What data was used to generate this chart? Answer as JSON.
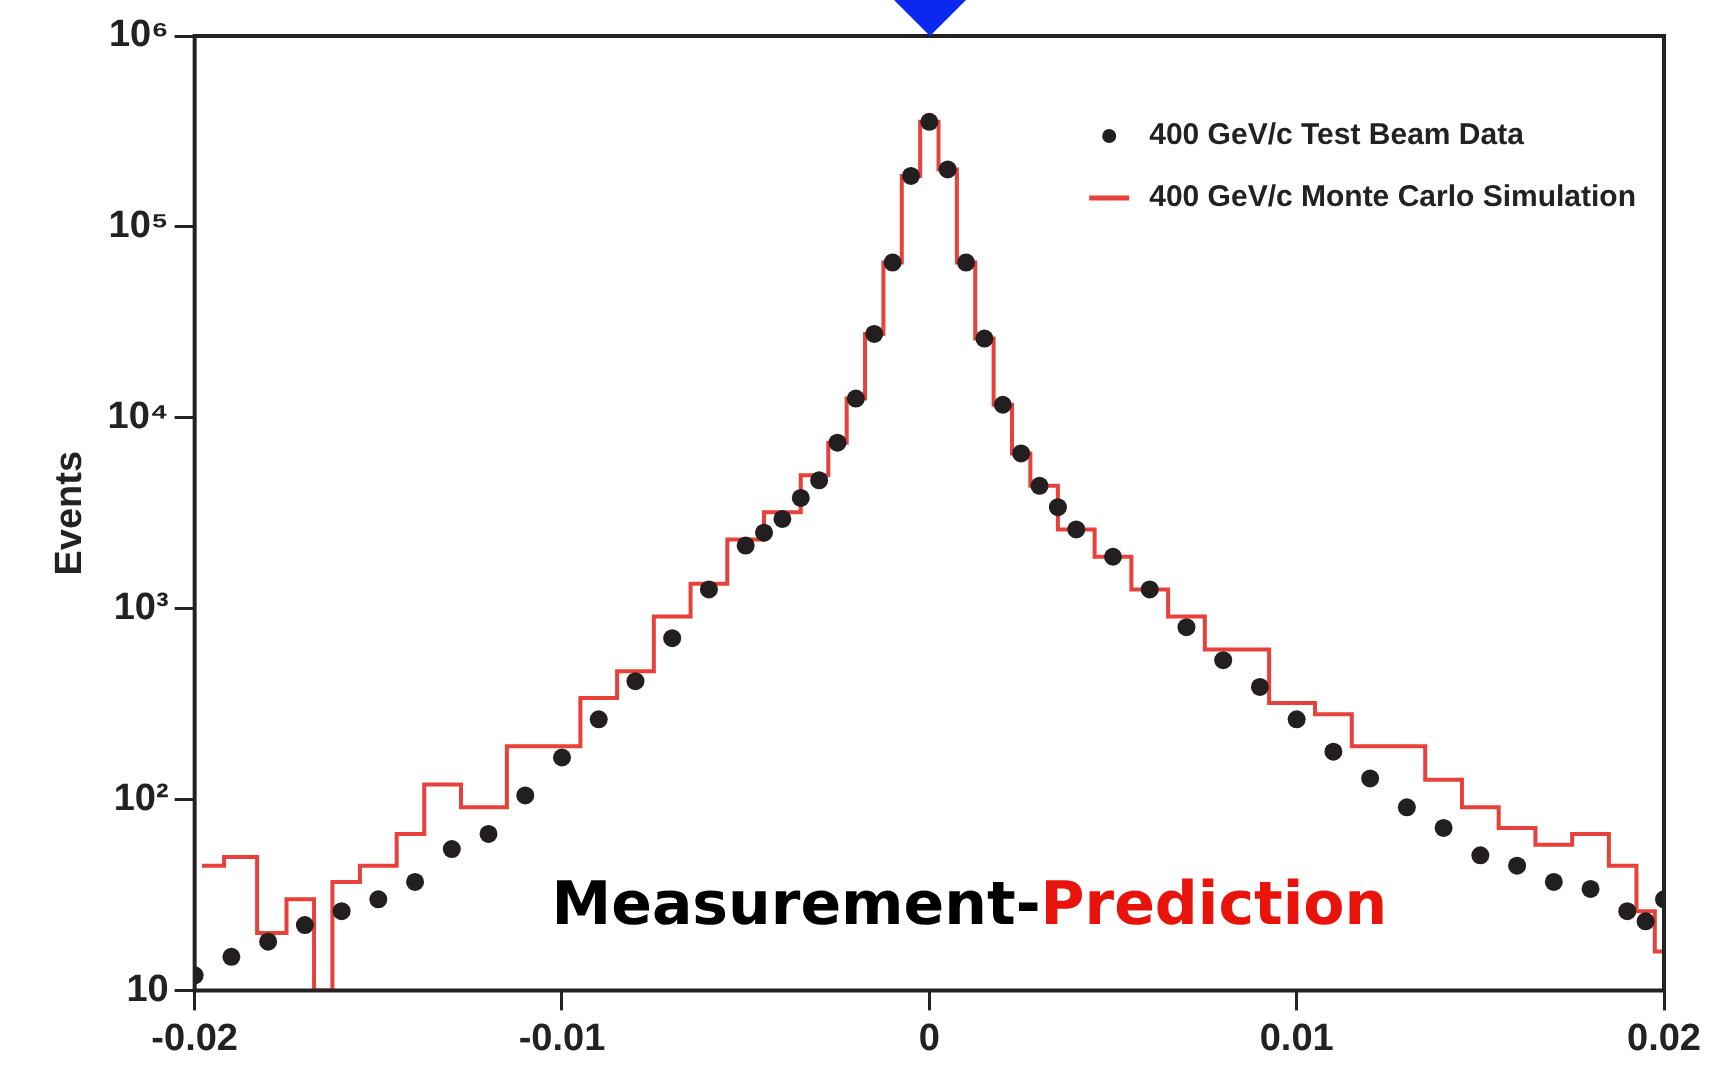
{
  "chart_data": {
    "type": "scatter",
    "xlabel": "Measurement-Prediction",
    "ylabel": "Events",
    "log": "y",
    "xlim": [
      -0.02,
      0.02
    ],
    "xticks": [
      -0.02,
      -0.01,
      0,
      0.01,
      0.02
    ],
    "ylim": [
      10,
      1000000
    ],
    "yticks": [
      {
        "value": 10,
        "label": "10"
      },
      {
        "value": 100,
        "label": "10²"
      },
      {
        "value": 1000,
        "label": "10³"
      },
      {
        "value": 10000,
        "label": "10⁴"
      },
      {
        "value": 100000,
        "label": "10⁵"
      },
      {
        "value": 1000000,
        "label": "10⁶"
      }
    ],
    "grid": false,
    "legend": "top right",
    "series": [
      {
        "name": "400 GeV/c Monte Carlo Simulation",
        "type": "step",
        "color": "#e8403a",
        "x": [
          -0.0198,
          -0.0186,
          -0.018,
          -0.017,
          -0.0165,
          -0.016,
          -0.015,
          -0.014,
          -0.0135,
          -0.012,
          -0.011,
          -0.01,
          -0.009,
          -0.008,
          -0.007,
          -0.006,
          -0.005,
          -0.004,
          -0.003,
          -0.0025,
          -0.002,
          -0.0015,
          -0.001,
          -0.0005,
          0,
          0.0005,
          0.001,
          0.0015,
          0.002,
          0.0025,
          0.003,
          0.004,
          0.005,
          0.006,
          0.007,
          0.008,
          0.0085,
          0.01,
          0.011,
          0.012,
          0.013,
          0.014,
          0.015,
          0.016,
          0.017,
          0.018,
          0.019,
          0.0195,
          0.02
        ],
        "values": [
          45,
          50,
          20,
          30,
          10,
          37,
          45,
          66,
          120,
          91,
          190,
          190,
          340,
          470,
          910,
          1350,
          2300,
          3200,
          5000,
          7400,
          12600,
          27500,
          65000,
          185000,
          355000,
          200000,
          65000,
          26000,
          11700,
          6500,
          4400,
          2600,
          1870,
          1260,
          910,
          610,
          610,
          320,
          280,
          190,
          190,
          127,
          91,
          71,
          58,
          66,
          45,
          26,
          16
        ]
      },
      {
        "name": "400 GeV/c Test Beam Data",
        "marker": "circle",
        "color": "#231f20",
        "x": [
          -0.02,
          -0.019,
          -0.018,
          -0.017,
          -0.016,
          -0.015,
          -0.014,
          -0.013,
          -0.012,
          -0.011,
          -0.01,
          -0.009,
          -0.008,
          -0.007,
          -0.006,
          -0.005,
          -0.0045,
          -0.004,
          -0.0035,
          -0.003,
          -0.0025,
          -0.002,
          -0.0015,
          -0.001,
          -0.0005,
          0,
          0.0005,
          0.001,
          0.0015,
          0.002,
          0.0025,
          0.003,
          0.0035,
          0.004,
          0.005,
          0.006,
          0.007,
          0.008,
          0.009,
          0.01,
          0.011,
          0.012,
          0.013,
          0.014,
          0.015,
          0.016,
          0.017,
          0.018,
          0.019,
          0.0195,
          0.02
        ],
        "values": [
          12,
          15,
          18,
          22,
          26,
          30,
          37,
          55,
          66,
          105,
          166,
          263,
          417,
          700,
          1260,
          2140,
          2500,
          2950,
          3800,
          4700,
          7400,
          12600,
          27500,
          65000,
          185000,
          355000,
          200000,
          65000,
          26000,
          11700,
          6500,
          4400,
          3400,
          2600,
          1870,
          1260,
          800,
          537,
          389,
          263,
          178,
          129,
          91,
          71,
          51,
          45,
          37,
          34,
          26,
          23,
          30
        ]
      }
    ]
  }
}
